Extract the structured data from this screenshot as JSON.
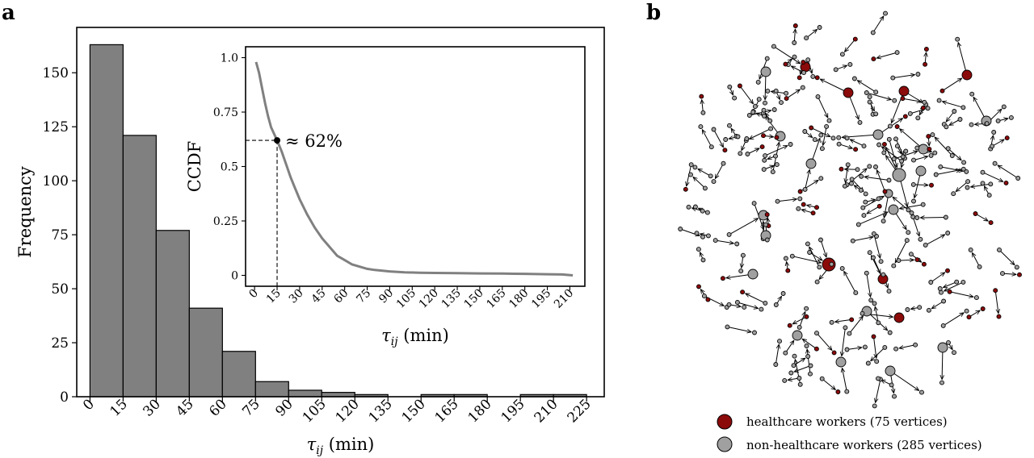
{
  "panels": {
    "a": "a",
    "b": "b"
  },
  "chart_data": [
    {
      "type": "bar",
      "panel": "a",
      "title": "",
      "xlabel": "τij (min)",
      "ylabel": "Frequency",
      "bin_edges": [
        0,
        15,
        30,
        45,
        60,
        75,
        90,
        105,
        120,
        135,
        150,
        165,
        180,
        195,
        210,
        225
      ],
      "values": [
        163,
        121,
        77,
        41,
        21,
        7,
        3,
        2,
        1,
        0,
        1,
        1,
        0,
        1,
        1
      ],
      "xticks": [
        "0",
        "15",
        "30",
        "45",
        "60",
        "75",
        "90",
        "105",
        "120",
        "135",
        "150",
        "165",
        "180",
        "195",
        "210",
        "225"
      ],
      "yticks": [
        "0",
        "25",
        "50",
        "75",
        "100",
        "125",
        "150"
      ],
      "xlim": [
        -6,
        233
      ],
      "ylim": [
        0,
        171
      ],
      "bar_color": "#808080",
      "grid": false
    },
    {
      "type": "line",
      "panel": "a-inset",
      "title": "",
      "xlabel": "τij (min)",
      "ylabel": "CCDF",
      "x": [
        1,
        3,
        5,
        7,
        9,
        11,
        13,
        15,
        18,
        21,
        24,
        27,
        30,
        35,
        40,
        45,
        50,
        55,
        60,
        65,
        70,
        75,
        80,
        90,
        100,
        110,
        120,
        135,
        150,
        165,
        180,
        195,
        205,
        212
      ],
      "y": [
        0.98,
        0.93,
        0.86,
        0.79,
        0.73,
        0.68,
        0.65,
        0.62,
        0.57,
        0.51,
        0.45,
        0.4,
        0.35,
        0.28,
        0.22,
        0.17,
        0.13,
        0.09,
        0.07,
        0.05,
        0.04,
        0.03,
        0.025,
        0.018,
        0.014,
        0.012,
        0.011,
        0.01,
        0.009,
        0.008,
        0.007,
        0.005,
        0.004,
        0.0
      ],
      "xticks": [
        "0",
        "15",
        "30",
        "45",
        "60",
        "75",
        "90",
        "105",
        "120",
        "135",
        "150",
        "165",
        "180",
        "195",
        "210"
      ],
      "yticks": [
        "0",
        "0.25",
        "0.5",
        "0.75",
        "1.0"
      ],
      "xlim": [
        -6,
        220
      ],
      "ylim": [
        -0.05,
        1.05
      ],
      "line_color": "#808080",
      "annotation": {
        "x": 15,
        "y": 0.62,
        "text": "≈ 62%"
      },
      "grid": false
    }
  ],
  "network": {
    "legend": [
      {
        "label": "healthcare workers (75 vertices)",
        "color": "#8b0a0a"
      },
      {
        "label": "non-healthcare workers (285 vertices)",
        "color": "#a0a0a0"
      }
    ],
    "colors": {
      "healthcare": "#8b0a0a",
      "other": "#a0a0a0",
      "edge": "#000000"
    }
  }
}
